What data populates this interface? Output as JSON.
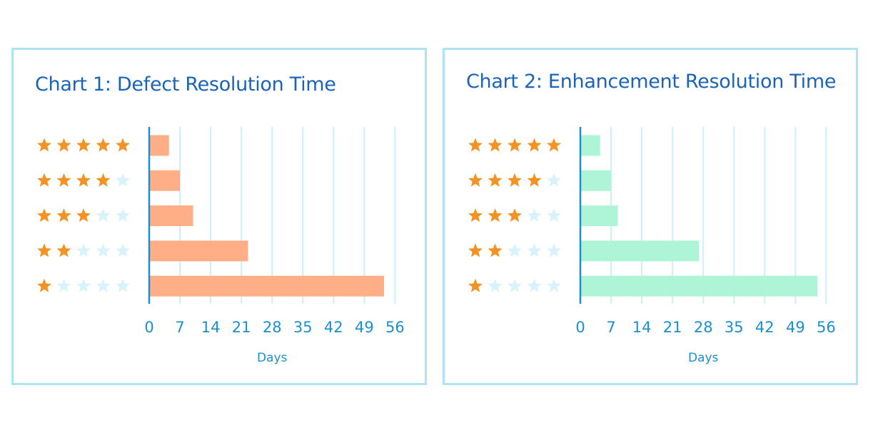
{
  "colors": {
    "panel_border": "#aee3f7",
    "title": "#1a63b5",
    "axis": "#1b8fd0",
    "grid": "#cdeffa",
    "star_filled": "#f39323",
    "star_empty": "#d8f3fc",
    "bar_chart1": "#ffae85",
    "bar_chart2": "#aef5d8"
  },
  "chart_data": [
    {
      "type": "bar",
      "orientation": "horizontal",
      "title": "Chart 1: Defect Resolution Time",
      "xlabel": "Days",
      "ylabel": "",
      "categories": [
        5,
        4,
        3,
        2,
        1
      ],
      "category_display": "star-rating (out of 5)",
      "values": [
        4.5,
        7,
        10,
        22.5,
        53.5
      ],
      "xlim": [
        0,
        56
      ],
      "xticks": [
        "0",
        "7",
        "14",
        "21",
        "28",
        "35",
        "42",
        "49",
        "56"
      ],
      "grid": true,
      "bar_color": "#ffae85"
    },
    {
      "type": "bar",
      "orientation": "horizontal",
      "title": "Chart 2: Enhancement Resolution Time",
      "xlabel": "Days",
      "ylabel": "",
      "categories": [
        5,
        4,
        3,
        2,
        1
      ],
      "category_display": "star-rating (out of 5)",
      "values": [
        4.5,
        7,
        8.5,
        27,
        54
      ],
      "xlim": [
        0,
        56
      ],
      "xticks": [
        "0",
        "7",
        "14",
        "21",
        "28",
        "35",
        "42",
        "49",
        "56"
      ],
      "grid": true,
      "bar_color": "#aef5d8"
    }
  ]
}
